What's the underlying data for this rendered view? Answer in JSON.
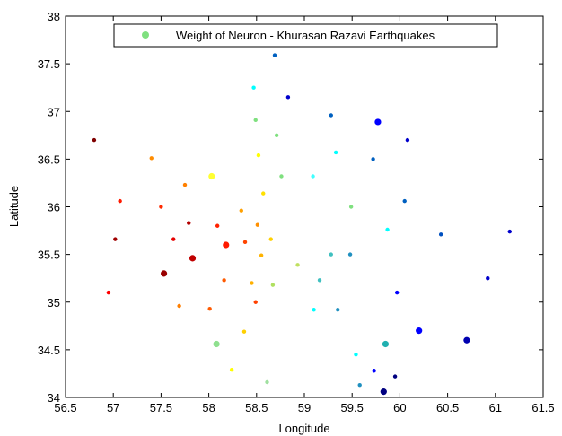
{
  "chart_data": {
    "type": "scatter",
    "title": "",
    "xlabel": "Longitude",
    "ylabel": "Latitude",
    "xlim": [
      56.5,
      61.5
    ],
    "ylim": [
      34,
      38
    ],
    "x_ticks": [
      "56.5",
      "57",
      "57.5",
      "58",
      "58.5",
      "59",
      "59.5",
      "60",
      "60.5",
      "61",
      "61.5"
    ],
    "y_ticks": [
      "34",
      "34.5",
      "35",
      "35.5",
      "36",
      "36.5",
      "37",
      "37.5",
      "38"
    ],
    "grid": false,
    "legend": {
      "position": "top",
      "label": "Weight of Neuron - Khurasan Razavi Earthquakes",
      "marker_color": "#7fe07f"
    },
    "points": [
      {
        "x": 56.8,
        "y": 36.7,
        "size": "small",
        "color": "#7f0000"
      },
      {
        "x": 57.02,
        "y": 35.66,
        "size": "small",
        "color": "#a00000"
      },
      {
        "x": 57.07,
        "y": 36.06,
        "size": "small",
        "color": "#ff1a00"
      },
      {
        "x": 56.95,
        "y": 35.1,
        "size": "small",
        "color": "#ff0000"
      },
      {
        "x": 57.4,
        "y": 36.51,
        "size": "small",
        "color": "#ff8c00"
      },
      {
        "x": 57.5,
        "y": 36.0,
        "size": "small",
        "color": "#ff2a00"
      },
      {
        "x": 57.53,
        "y": 35.3,
        "size": "large",
        "color": "#990000"
      },
      {
        "x": 57.63,
        "y": 35.66,
        "size": "small",
        "color": "#e60000"
      },
      {
        "x": 57.69,
        "y": 34.96,
        "size": "small",
        "color": "#ff7f00"
      },
      {
        "x": 57.75,
        "y": 36.23,
        "size": "small",
        "color": "#ff8000"
      },
      {
        "x": 57.79,
        "y": 35.83,
        "size": "small",
        "color": "#b30000"
      },
      {
        "x": 57.83,
        "y": 35.46,
        "size": "large",
        "color": "#c00000"
      },
      {
        "x": 58.01,
        "y": 34.93,
        "size": "small",
        "color": "#ff5a00"
      },
      {
        "x": 58.03,
        "y": 36.32,
        "size": "large",
        "color": "#ffff33"
      },
      {
        "x": 58.08,
        "y": 34.56,
        "size": "large",
        "color": "#8fe08f"
      },
      {
        "x": 58.09,
        "y": 35.8,
        "size": "small",
        "color": "#ff2200"
      },
      {
        "x": 58.16,
        "y": 35.23,
        "size": "small",
        "color": "#ff5a00"
      },
      {
        "x": 58.18,
        "y": 35.6,
        "size": "large",
        "color": "#ff1a00"
      },
      {
        "x": 58.24,
        "y": 34.29,
        "size": "small",
        "color": "#ffff00"
      },
      {
        "x": 58.34,
        "y": 35.96,
        "size": "small",
        "color": "#ffa000"
      },
      {
        "x": 58.38,
        "y": 35.63,
        "size": "small",
        "color": "#ff4400"
      },
      {
        "x": 58.37,
        "y": 34.69,
        "size": "small",
        "color": "#ffd000"
      },
      {
        "x": 58.45,
        "y": 35.2,
        "size": "small",
        "color": "#ffb000"
      },
      {
        "x": 58.49,
        "y": 35.0,
        "size": "small",
        "color": "#ff4000"
      },
      {
        "x": 58.47,
        "y": 37.25,
        "size": "small",
        "color": "#00ffff"
      },
      {
        "x": 58.49,
        "y": 36.91,
        "size": "small",
        "color": "#7fe07f"
      },
      {
        "x": 58.52,
        "y": 36.54,
        "size": "small",
        "color": "#ffff00"
      },
      {
        "x": 58.51,
        "y": 35.81,
        "size": "small",
        "color": "#ff9000"
      },
      {
        "x": 58.55,
        "y": 35.49,
        "size": "small",
        "color": "#ffb300"
      },
      {
        "x": 58.57,
        "y": 36.14,
        "size": "small",
        "color": "#ffe000"
      },
      {
        "x": 58.61,
        "y": 34.16,
        "size": "small",
        "color": "#a0e0a0"
      },
      {
        "x": 58.65,
        "y": 35.66,
        "size": "small",
        "color": "#ffd000"
      },
      {
        "x": 58.67,
        "y": 35.18,
        "size": "small",
        "color": "#b0e060"
      },
      {
        "x": 58.69,
        "y": 37.59,
        "size": "small",
        "color": "#0060c0"
      },
      {
        "x": 58.71,
        "y": 36.75,
        "size": "small",
        "color": "#7fe07f"
      },
      {
        "x": 58.76,
        "y": 36.32,
        "size": "small",
        "color": "#7fe07f"
      },
      {
        "x": 58.83,
        "y": 37.15,
        "size": "small",
        "color": "#0000cc"
      },
      {
        "x": 58.93,
        "y": 35.39,
        "size": "small",
        "color": "#c0e060"
      },
      {
        "x": 59.09,
        "y": 36.32,
        "size": "small",
        "color": "#40ffff"
      },
      {
        "x": 59.1,
        "y": 34.92,
        "size": "small",
        "color": "#00ffff"
      },
      {
        "x": 59.16,
        "y": 35.23,
        "size": "small",
        "color": "#40c0c0"
      },
      {
        "x": 59.28,
        "y": 36.96,
        "size": "small",
        "color": "#0060c0"
      },
      {
        "x": 59.28,
        "y": 35.5,
        "size": "small",
        "color": "#40c0c0"
      },
      {
        "x": 59.33,
        "y": 36.57,
        "size": "small",
        "color": "#00ffff"
      },
      {
        "x": 59.35,
        "y": 34.92,
        "size": "small",
        "color": "#2090c0"
      },
      {
        "x": 59.48,
        "y": 35.5,
        "size": "small",
        "color": "#2090c0"
      },
      {
        "x": 59.49,
        "y": 36.0,
        "size": "small",
        "color": "#7fe07f"
      },
      {
        "x": 59.54,
        "y": 34.45,
        "size": "small",
        "color": "#00ffff"
      },
      {
        "x": 59.58,
        "y": 34.13,
        "size": "small",
        "color": "#2090c0"
      },
      {
        "x": 59.72,
        "y": 36.5,
        "size": "small",
        "color": "#0060c0"
      },
      {
        "x": 59.73,
        "y": 34.28,
        "size": "small",
        "color": "#0000ff"
      },
      {
        "x": 59.77,
        "y": 36.89,
        "size": "large",
        "color": "#0000ff"
      },
      {
        "x": 59.83,
        "y": 34.06,
        "size": "large",
        "color": "#000080"
      },
      {
        "x": 59.85,
        "y": 34.56,
        "size": "large",
        "color": "#20b0b0"
      },
      {
        "x": 59.87,
        "y": 35.76,
        "size": "small",
        "color": "#00ffff"
      },
      {
        "x": 59.95,
        "y": 34.22,
        "size": "small",
        "color": "#000080"
      },
      {
        "x": 59.97,
        "y": 35.1,
        "size": "small",
        "color": "#0000ff"
      },
      {
        "x": 60.05,
        "y": 36.06,
        "size": "small",
        "color": "#0060c0"
      },
      {
        "x": 60.08,
        "y": 36.7,
        "size": "small",
        "color": "#0000cc"
      },
      {
        "x": 60.2,
        "y": 34.7,
        "size": "large",
        "color": "#0000ff"
      },
      {
        "x": 60.43,
        "y": 35.71,
        "size": "small",
        "color": "#0050c0"
      },
      {
        "x": 60.7,
        "y": 34.6,
        "size": "large",
        "color": "#0000b0"
      },
      {
        "x": 60.92,
        "y": 35.25,
        "size": "small",
        "color": "#0000cc"
      },
      {
        "x": 61.15,
        "y": 35.74,
        "size": "small",
        "color": "#0000cc"
      }
    ]
  }
}
